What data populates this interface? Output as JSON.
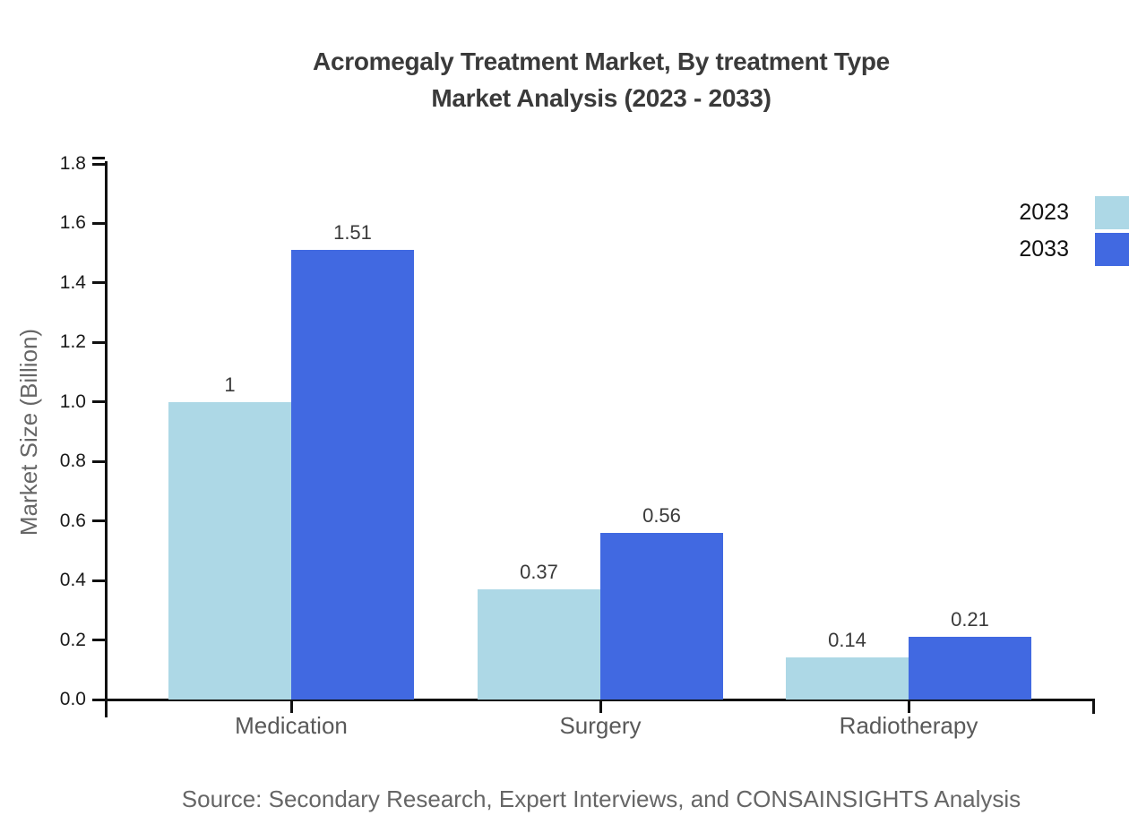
{
  "title": {
    "line1": "Acromegaly Treatment Market, By treatment Type",
    "line2": "Market Analysis (2023 - 2033)"
  },
  "source": "Source: Secondary Research, Expert Interviews, and CONSAINSIGHTS Analysis",
  "chart_data": {
    "type": "bar",
    "title": "Acromegaly Treatment Market, By treatment Type Market Analysis (2023 - 2033)",
    "categories": [
      "Medication",
      "Surgery",
      "Radiotherapy"
    ],
    "series": [
      {
        "name": "2023",
        "color": "#ADD8E6",
        "values": [
          1,
          0.37,
          0.14
        ],
        "labels": [
          "1",
          "0.37",
          "0.14"
        ]
      },
      {
        "name": "2033",
        "color": "#4169E1",
        "values": [
          1.51,
          0.56,
          0.21
        ],
        "labels": [
          "1.51",
          "0.56",
          "0.21"
        ]
      }
    ],
    "xlabel": "",
    "ylabel": "Market Size (Billion)",
    "ylim": [
      0,
      1.8
    ],
    "yticks": [
      0.0,
      0.2,
      0.4,
      0.6,
      0.8,
      1.0,
      1.2,
      1.4,
      1.6,
      1.8
    ],
    "grid": false,
    "bar_value_labels": true,
    "legend_position": "top-right-outside"
  }
}
